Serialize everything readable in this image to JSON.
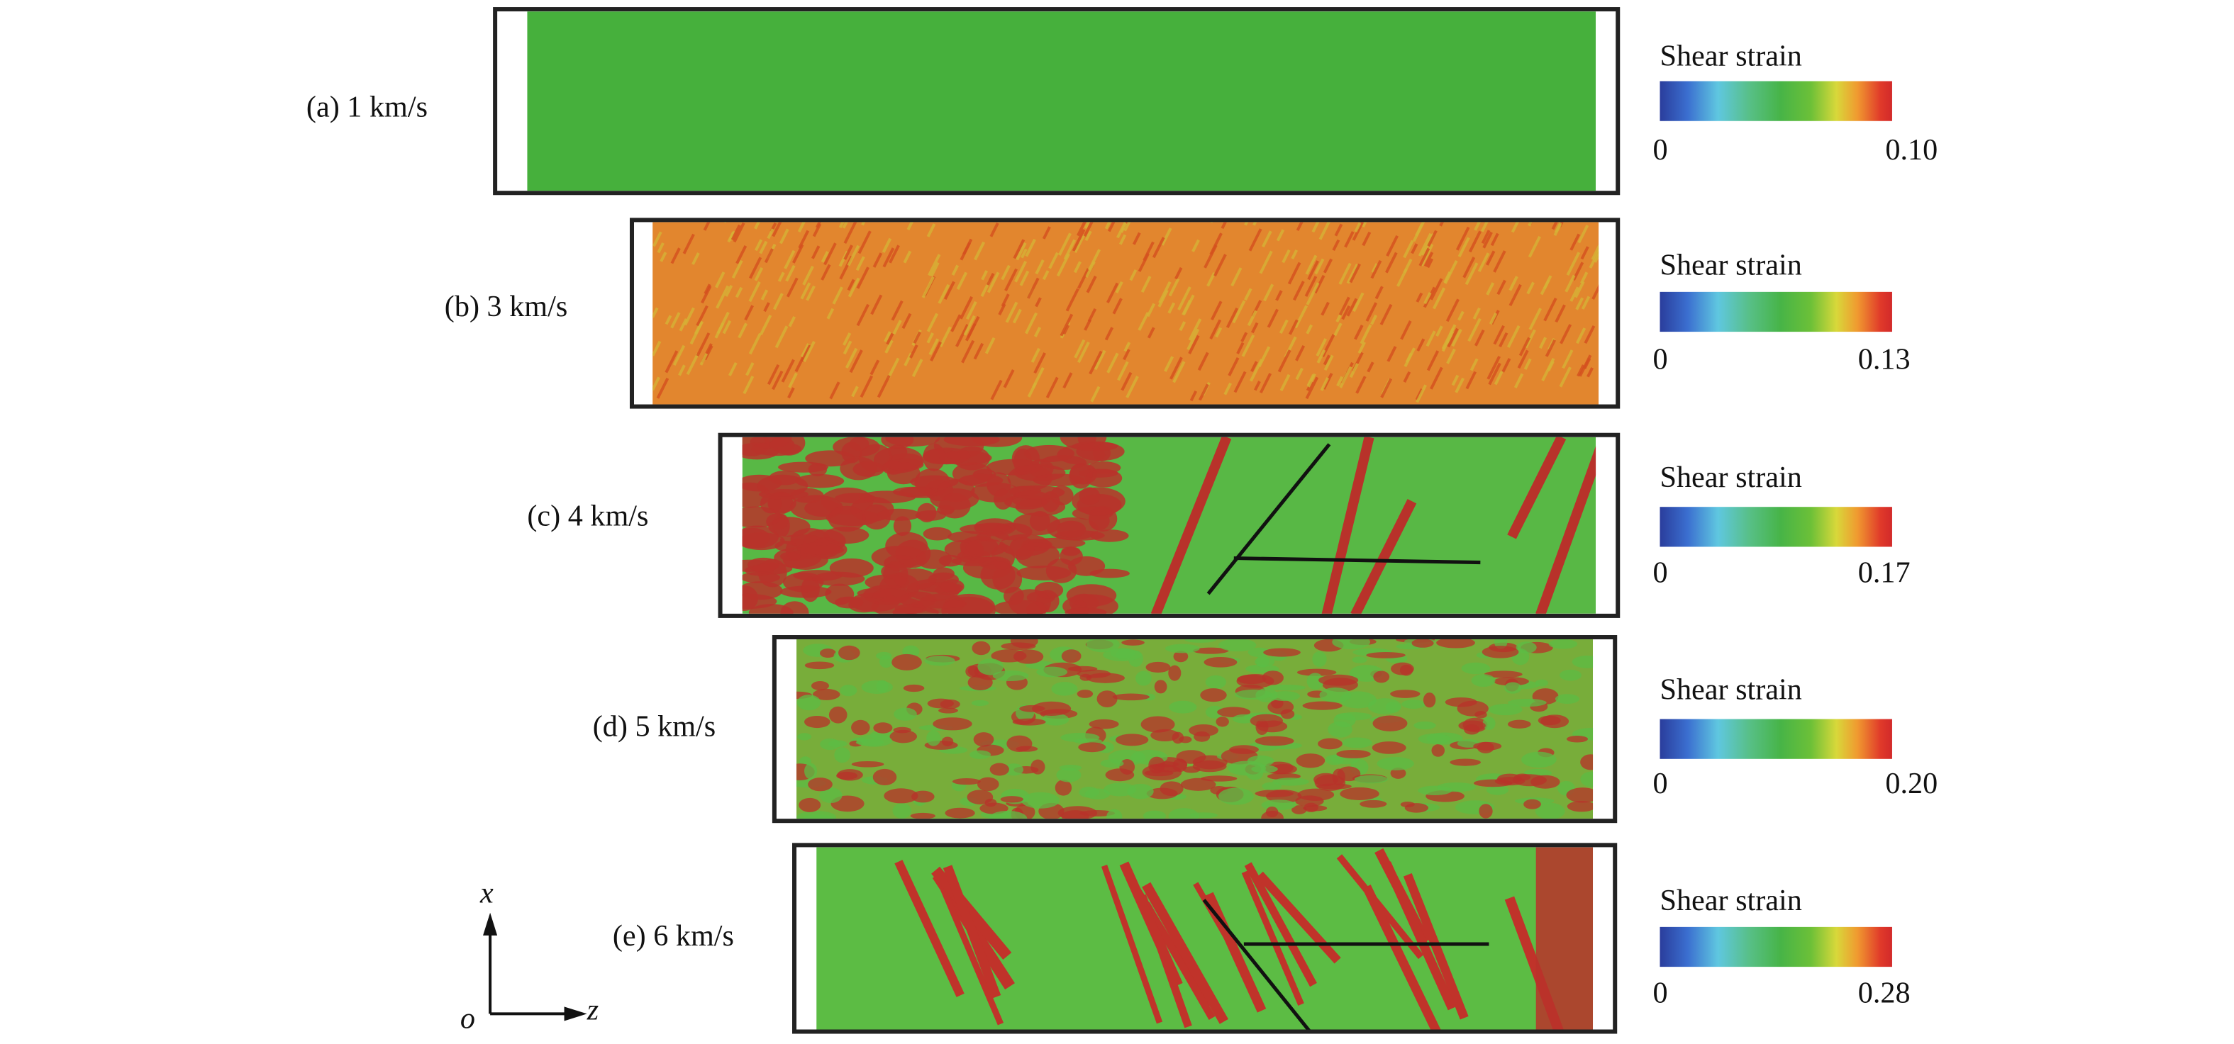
{
  "panels": [
    {
      "label": "(a) 1 km/s",
      "colorbar": {
        "title": "Shear strain",
        "min": "0",
        "max": "0.10"
      }
    },
    {
      "label": "(b) 3 km/s",
      "colorbar": {
        "title": "Shear strain",
        "min": "0",
        "max": "0.13"
      }
    },
    {
      "label": "(c) 4 km/s",
      "colorbar": {
        "title": "Shear strain",
        "min": "0",
        "max": "0.17"
      }
    },
    {
      "label": "(d) 5 km/s",
      "colorbar": {
        "title": "Shear strain",
        "min": "0",
        "max": "0.20"
      }
    },
    {
      "label": "(e) 6 km/s",
      "colorbar": {
        "title": "Shear strain",
        "min": "0",
        "max": "0.28"
      }
    }
  ],
  "colormap": [
    "#2a3d9c",
    "#5fc7e0",
    "#47b447",
    "#d8d83a",
    "#f09a30",
    "#d22a2a"
  ],
  "axes": {
    "vertical": "x",
    "horizontal": "z",
    "origin": "o"
  }
}
